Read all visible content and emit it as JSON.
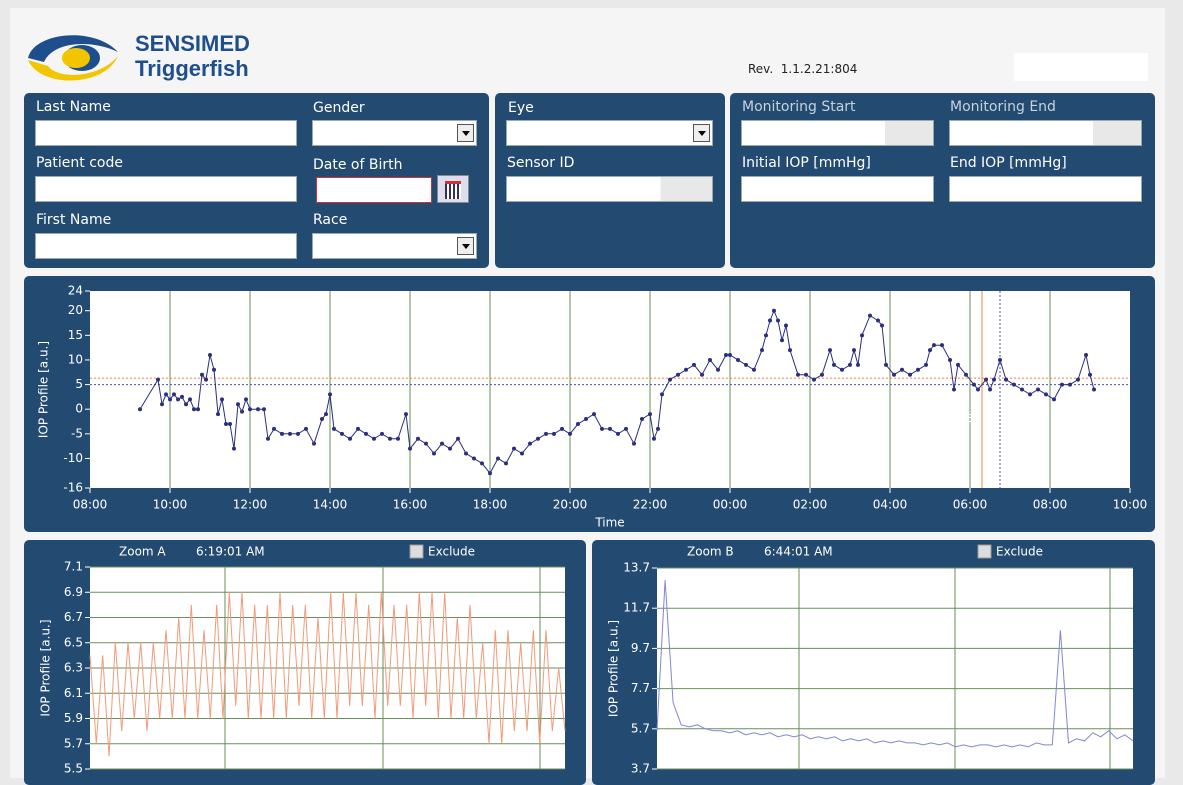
{
  "header": {
    "brand": "SENSIMED",
    "product": "Triggerfish",
    "revision": "Rev.  1.1.2.21:804"
  },
  "form": {
    "last_name": "Last Name",
    "gender": "Gender",
    "patient_code": "Patient code",
    "date_of_birth": "Date of Birth",
    "first_name": "First Name",
    "race": "Race",
    "eye": "Eye",
    "sensor_id": "Sensor ID",
    "monitoring_start": "Monitoring Start",
    "monitoring_end": "Monitoring End",
    "initial_iop": "Initial IOP [mmHg]",
    "end_iop": "End IOP [mmHg]"
  },
  "chart_data": [
    {
      "type": "line",
      "y_label": "IOP Profile [a.u.]",
      "x_label": "Time",
      "grid": "x",
      "point_markers": true,
      "xlim": [
        8,
        34
      ],
      "xticks": [
        {
          "value": 8,
          "label": "08:00"
        },
        {
          "value": 10,
          "label": "10:00"
        },
        {
          "value": 12,
          "label": "12:00"
        },
        {
          "value": 14,
          "label": "14:00"
        },
        {
          "value": 16,
          "label": "16:00"
        },
        {
          "value": 18,
          "label": "18:00"
        },
        {
          "value": 20,
          "label": "20:00"
        },
        {
          "value": 22,
          "label": "22:00"
        },
        {
          "value": 24,
          "label": "00:00"
        },
        {
          "value": 26,
          "label": "02:00"
        },
        {
          "value": 28,
          "label": "04:00"
        },
        {
          "value": 30,
          "label": "06:00"
        },
        {
          "value": 32,
          "label": "08:00"
        },
        {
          "value": 34,
          "label": "10:00"
        }
      ],
      "ylim": [
        -16,
        24
      ],
      "yticks": [
        -16,
        -10,
        -5,
        0,
        5,
        10,
        15,
        20,
        24
      ],
      "x": [
        9.25,
        9.7,
        9.8,
        9.9,
        10.0,
        10.1,
        10.2,
        10.3,
        10.4,
        10.5,
        10.6,
        10.7,
        10.8,
        10.9,
        11.0,
        11.1,
        11.2,
        11.3,
        11.4,
        11.5,
        11.6,
        11.7,
        11.8,
        11.9,
        12.0,
        12.2,
        12.35,
        12.45,
        12.6,
        12.8,
        13.0,
        13.2,
        13.4,
        13.6,
        13.8,
        13.9,
        14.0,
        14.1,
        14.3,
        14.5,
        14.7,
        14.9,
        15.1,
        15.3,
        15.5,
        15.7,
        15.9,
        16.0,
        16.2,
        16.4,
        16.6,
        16.8,
        17.0,
        17.2,
        17.4,
        17.6,
        17.8,
        18.0,
        18.2,
        18.4,
        18.6,
        18.8,
        19.0,
        19.2,
        19.4,
        19.6,
        19.8,
        20.0,
        20.2,
        20.4,
        20.6,
        20.8,
        21.0,
        21.2,
        21.4,
        21.6,
        21.8,
        22.0,
        22.1,
        22.2,
        22.3,
        22.5,
        22.7,
        22.9,
        23.1,
        23.3,
        23.5,
        23.7,
        23.9,
        24.0,
        24.2,
        24.4,
        24.6,
        24.8,
        24.9,
        25.0,
        25.1,
        25.2,
        25.3,
        25.4,
        25.5,
        25.7,
        25.9,
        26.1,
        26.3,
        26.5,
        26.6,
        26.8,
        27.0,
        27.1,
        27.2,
        27.3,
        27.5,
        27.7,
        27.8,
        27.9,
        28.1,
        28.3,
        28.5,
        28.7,
        28.9,
        29.0,
        29.1,
        29.3,
        29.5,
        29.6,
        29.7,
        29.9,
        30.1,
        30.2,
        30.4,
        30.5,
        30.6,
        30.75,
        30.9,
        31.1,
        31.3,
        31.5,
        31.7,
        31.9,
        32.1,
        32.3,
        32.5,
        32.7,
        32.9,
        33.0,
        33.1
      ],
      "series": [
        {
          "color": "#2b2f7e",
          "values": [
            0,
            6,
            1,
            3,
            2,
            3,
            2,
            2.5,
            1,
            2,
            0,
            0,
            7,
            6,
            11,
            8,
            -1,
            2,
            -3,
            -3,
            -8,
            1,
            -0.5,
            2,
            0,
            0,
            0,
            -6,
            -4,
            -5,
            -5,
            -5,
            -4,
            -7,
            -2,
            -1,
            3,
            -4,
            -5,
            -6,
            -4,
            -5,
            -6,
            -5,
            -6,
            -6,
            -1,
            -8,
            -6,
            -7,
            -9,
            -7,
            -8,
            -6,
            -9,
            -10,
            -11,
            -13,
            -10,
            -11,
            -8,
            -9,
            -7,
            -6,
            -5,
            -5,
            -4,
            -5,
            -3,
            -2,
            -1,
            -4,
            -4,
            -5,
            -4,
            -7,
            -2,
            -1,
            -6,
            -4,
            3,
            6,
            7,
            8,
            9,
            7,
            10,
            8,
            11,
            11,
            10,
            9,
            8,
            12,
            15,
            18,
            20,
            18,
            14,
            17,
            12,
            7,
            7,
            6,
            7,
            12,
            9,
            8,
            9,
            12,
            9,
            15,
            19,
            18,
            17,
            9,
            7,
            8,
            7,
            8,
            9,
            12,
            13,
            13,
            10,
            4,
            9,
            7,
            5,
            4,
            6,
            4,
            6,
            10,
            6,
            5,
            4,
            3,
            4,
            3,
            2,
            5,
            5,
            6,
            11,
            7,
            4
          ]
        }
      ],
      "reference_lines": [
        {
          "x": 30.3,
          "y": 6.3,
          "color": "#f0843c"
        },
        {
          "x": 30.75,
          "y": 5.0,
          "color": "#4a4fa8"
        }
      ]
    },
    {
      "type": "line",
      "title": "Zoom A",
      "subtitle": "6:19:01 AM",
      "checkbox": "Exclude",
      "y_label": "IOP Profile [a.u.]",
      "grid": "y",
      "ylim": [
        5.5,
        7.1
      ],
      "yticks": [
        5.5,
        5.7,
        5.9,
        6.1,
        6.3,
        6.5,
        6.7,
        6.9,
        7.1
      ],
      "series": [
        {
          "color": "#f39a78",
          "values": [
            6.4,
            5.7,
            6.4,
            5.6,
            6.5,
            5.8,
            6.5,
            5.9,
            6.5,
            5.8,
            6.5,
            5.9,
            6.6,
            5.9,
            6.7,
            5.9,
            6.8,
            5.9,
            6.6,
            5.9,
            6.8,
            5.9,
            6.9,
            6.0,
            6.9,
            5.9,
            6.8,
            5.9,
            6.8,
            5.9,
            6.9,
            5.9,
            6.8,
            6.0,
            6.8,
            5.9,
            6.7,
            5.9,
            6.9,
            5.9,
            6.9,
            6.0,
            6.9,
            6.0,
            6.8,
            5.9,
            6.9,
            6.0,
            6.8,
            6.0,
            6.8,
            5.9,
            6.9,
            6.0,
            6.9,
            5.9,
            6.9,
            5.9,
            6.7,
            5.9,
            6.8,
            5.9,
            6.5,
            5.7,
            6.6,
            5.7,
            6.6,
            5.8,
            6.5,
            5.8,
            6.6,
            5.7,
            6.6,
            5.8,
            6.3,
            5.8
          ]
        }
      ]
    },
    {
      "type": "line",
      "title": "Zoom B",
      "subtitle": "6:44:01 AM",
      "checkbox": "Exclude",
      "y_label": "IOP Profile [a.u.]",
      "grid": "y",
      "ylim": [
        3.7,
        13.7
      ],
      "yticks": [
        3.7,
        5.7,
        7.7,
        9.7,
        11.7,
        13.7
      ],
      "series": [
        {
          "color": "#7f86d6",
          "values": [
            5.6,
            13.1,
            7.0,
            5.9,
            5.8,
            5.9,
            5.7,
            5.6,
            5.6,
            5.5,
            5.6,
            5.4,
            5.5,
            5.4,
            5.5,
            5.3,
            5.4,
            5.3,
            5.4,
            5.2,
            5.3,
            5.2,
            5.3,
            5.1,
            5.2,
            5.1,
            5.2,
            5.0,
            5.1,
            5.0,
            5.1,
            5.0,
            5.0,
            4.9,
            5.0,
            4.9,
            5.0,
            4.8,
            4.9,
            4.8,
            4.9,
            4.9,
            4.8,
            4.9,
            4.8,
            4.9,
            4.8,
            5.0,
            4.9,
            4.9,
            10.6,
            5.0,
            5.2,
            5.1,
            5.5,
            5.3,
            5.6,
            5.2,
            5.4,
            5.1
          ]
        }
      ]
    }
  ]
}
